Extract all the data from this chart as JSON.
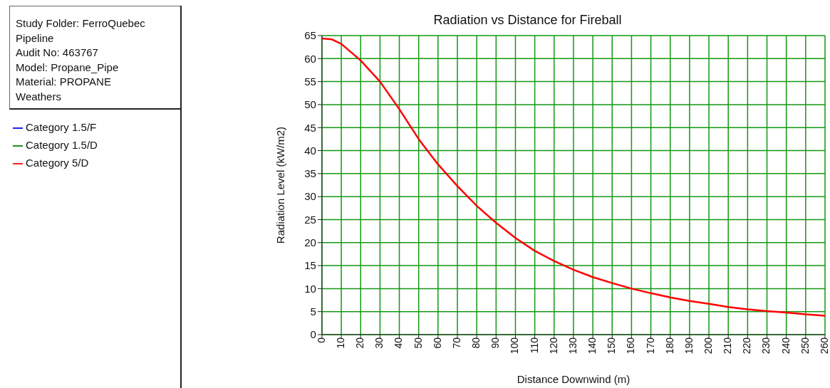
{
  "chart_data": {
    "type": "line",
    "title": "Radiation vs Distance for Fireball",
    "xlabel": "Distance Downwind (m)",
    "ylabel": "Radiation Level (kW/m2)",
    "annotations": [
      "Study Folder: FerroQuebec Pipeline",
      "Audit No: 463767",
      "Model: Propane_Pipe",
      "Material: PROPANE",
      "Weathers"
    ],
    "x": [
      0,
      5,
      10,
      20,
      30,
      40,
      50,
      60,
      70,
      80,
      90,
      100,
      110,
      120,
      130,
      140,
      150,
      160,
      170,
      180,
      190,
      200,
      210,
      220,
      230,
      240,
      250,
      260
    ],
    "series": [
      {
        "name": "Category 1.5/F",
        "color": "#0000ff",
        "values": [
          null,
          null,
          null,
          null,
          null,
          null,
          null,
          null,
          null,
          null,
          null,
          null,
          null,
          null,
          null,
          null,
          null,
          null,
          null,
          null,
          null,
          null,
          null,
          null,
          null,
          null,
          null,
          null
        ]
      },
      {
        "name": "Category 1.5/D",
        "color": "#008000",
        "values": [
          null,
          null,
          null,
          null,
          null,
          null,
          null,
          null,
          null,
          null,
          null,
          null,
          null,
          null,
          null,
          null,
          null,
          null,
          null,
          null,
          null,
          null,
          null,
          null,
          null,
          null,
          null,
          null
        ]
      },
      {
        "name": "Category 5/D",
        "color": "#ff0000",
        "values": [
          64.4,
          64.2,
          63.2,
          59.6,
          55,
          49,
          42.5,
          37,
          32.3,
          28,
          24.3,
          21,
          18.2,
          16,
          14.1,
          12.5,
          11.2,
          10,
          9,
          8.1,
          7.3,
          6.7,
          6,
          5.5,
          5.1,
          4.8,
          4.4,
          4.1
        ]
      }
    ],
    "xlim": [
      0,
      260
    ],
    "xticks": [
      0,
      10,
      20,
      30,
      40,
      50,
      60,
      70,
      80,
      90,
      100,
      110,
      120,
      130,
      140,
      150,
      160,
      170,
      180,
      190,
      200,
      210,
      220,
      230,
      240,
      250,
      260
    ],
    "ylim": [
      0,
      65
    ],
    "yticks": [
      0,
      5,
      10,
      15,
      20,
      25,
      30,
      35,
      40,
      45,
      50,
      55,
      60,
      65
    ],
    "grid": true,
    "legend": "left",
    "marker": "none",
    "line_style": "solid"
  }
}
